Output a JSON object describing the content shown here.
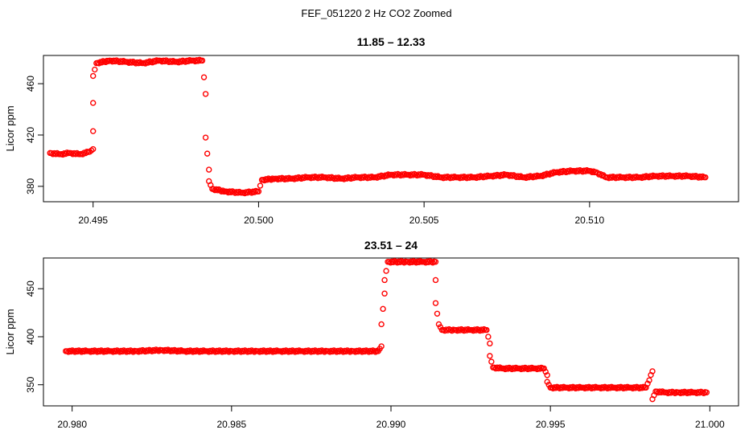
{
  "figure": {
    "suptitle": "FEF_051220  2 Hz CO2 Zoomed"
  },
  "colors": {
    "marker": "#ff0000",
    "axis": "#000000",
    "background": "#ffffff"
  },
  "chart_data": [
    {
      "type": "scatter",
      "title": "11.85 – 12.33",
      "xlabel": "",
      "ylabel": "Licor ppm",
      "xlim": [
        20.4935,
        20.5145
      ],
      "ylim": [
        368,
        482
      ],
      "xticks": [
        20.495,
        20.5,
        20.505,
        20.51
      ],
      "xtick_labels": [
        "20.495",
        "20.500",
        "20.505",
        "20.510"
      ],
      "yticks": [
        380,
        420,
        460
      ],
      "ytick_labels": [
        "380",
        "420",
        "460"
      ],
      "grid": false,
      "legend": "none",
      "marker": "open-circle",
      "points": [
        [
          20.4937,
          406
        ],
        [
          20.494,
          405
        ],
        [
          20.4943,
          406
        ],
        [
          20.4946,
          405
        ],
        [
          20.4949,
          407
        ],
        [
          20.495,
          409
        ],
        [
          20.495,
          423
        ],
        [
          20.495,
          445
        ],
        [
          20.495,
          466
        ],
        [
          20.4951,
          476
        ],
        [
          20.4955,
          478
        ],
        [
          20.496,
          477
        ],
        [
          20.4965,
          476
        ],
        [
          20.497,
          478
        ],
        [
          20.4975,
          477
        ],
        [
          20.498,
          478
        ],
        [
          20.4983,
          478
        ],
        [
          20.4984,
          452
        ],
        [
          20.4984,
          418
        ],
        [
          20.4985,
          393
        ],
        [
          20.4985,
          384
        ],
        [
          20.4986,
          378
        ],
        [
          20.499,
          376
        ],
        [
          20.4995,
          375
        ],
        [
          20.5,
          376
        ],
        [
          20.5001,
          385
        ],
        [
          20.5005,
          386
        ],
        [
          20.501,
          386
        ],
        [
          20.5015,
          387
        ],
        [
          20.502,
          387
        ],
        [
          20.5025,
          386
        ],
        [
          20.503,
          387
        ],
        [
          20.5035,
          387
        ],
        [
          20.504,
          389
        ],
        [
          20.5045,
          389
        ],
        [
          20.505,
          389
        ],
        [
          20.5055,
          387
        ],
        [
          20.506,
          387
        ],
        [
          20.5065,
          387
        ],
        [
          20.507,
          388
        ],
        [
          20.5075,
          389
        ],
        [
          20.508,
          387
        ],
        [
          20.5085,
          388
        ],
        [
          20.509,
          391
        ],
        [
          20.5095,
          392
        ],
        [
          20.51,
          392
        ],
        [
          20.5102,
          391
        ],
        [
          20.5105,
          387
        ],
        [
          20.511,
          387
        ],
        [
          20.5115,
          387
        ],
        [
          20.512,
          388
        ],
        [
          20.5125,
          388
        ],
        [
          20.513,
          388
        ],
        [
          20.5135,
          387
        ]
      ]
    },
    {
      "type": "scatter",
      "title": "23.51 – 24",
      "xlabel": "",
      "ylabel": "Licor ppm",
      "xlim": [
        20.9791,
        21.0009
      ],
      "ylim": [
        328,
        482
      ],
      "xticks": [
        20.98,
        20.985,
        20.99,
        20.995,
        21.0
      ],
      "xtick_labels": [
        "20.980",
        "20.985",
        "20.990",
        "20.995",
        "21.000"
      ],
      "yticks": [
        350,
        400,
        450
      ],
      "ytick_labels": [
        "350",
        "400",
        "450"
      ],
      "grid": false,
      "legend": "none",
      "marker": "open-circle",
      "points": [
        [
          20.9798,
          385
        ],
        [
          20.9805,
          385
        ],
        [
          20.9812,
          385
        ],
        [
          20.982,
          385
        ],
        [
          20.9828,
          386
        ],
        [
          20.9835,
          385
        ],
        [
          20.9842,
          385
        ],
        [
          20.985,
          385
        ],
        [
          20.9858,
          385
        ],
        [
          20.9865,
          385
        ],
        [
          20.9872,
          385
        ],
        [
          20.988,
          385
        ],
        [
          20.9888,
          385
        ],
        [
          20.9896,
          385
        ],
        [
          20.9897,
          390
        ],
        [
          20.9897,
          413
        ],
        [
          20.9898,
          445
        ],
        [
          20.9898,
          459
        ],
        [
          20.9899,
          478
        ],
        [
          20.9905,
          478
        ],
        [
          20.991,
          478
        ],
        [
          20.9914,
          478
        ],
        [
          20.9914,
          459
        ],
        [
          20.9914,
          435
        ],
        [
          20.9915,
          413
        ],
        [
          20.9916,
          407
        ],
        [
          20.992,
          407
        ],
        [
          20.9925,
          407
        ],
        [
          20.993,
          407
        ],
        [
          20.9931,
          393
        ],
        [
          20.9931,
          380
        ],
        [
          20.9932,
          368
        ],
        [
          20.9935,
          367
        ],
        [
          20.994,
          367
        ],
        [
          20.9945,
          367
        ],
        [
          20.9948,
          367
        ],
        [
          20.9949,
          360
        ],
        [
          20.9949,
          353
        ],
        [
          20.995,
          347
        ],
        [
          20.9955,
          347
        ],
        [
          20.996,
          347
        ],
        [
          20.9965,
          347
        ],
        [
          20.997,
          347
        ],
        [
          20.9975,
          347
        ],
        [
          20.998,
          347
        ],
        [
          20.9982,
          364
        ],
        [
          20.9982,
          335
        ],
        [
          20.9983,
          343
        ],
        [
          20.9986,
          342
        ],
        [
          20.999,
          342
        ],
        [
          20.9995,
          342
        ],
        [
          20.9999,
          342
        ]
      ]
    }
  ]
}
